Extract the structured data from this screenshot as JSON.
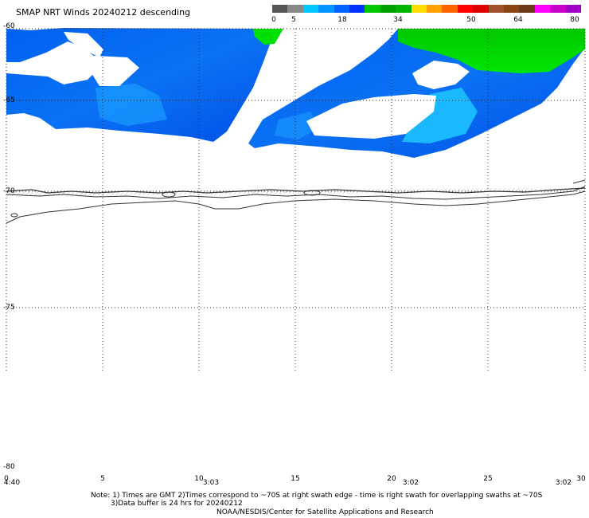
{
  "header": {
    "title": "SMAP NRT Winds  20240212 descending"
  },
  "colorbar": {
    "labels": [
      "0",
      "5",
      "18",
      "34",
      "50",
      "64",
      "80"
    ],
    "segments": [
      {
        "color": "#555555"
      },
      {
        "color": "#888888"
      },
      {
        "color": "#00c8ff"
      },
      {
        "color": "#0096ff"
      },
      {
        "color": "#0064ff"
      },
      {
        "color": "#0032ff"
      },
      {
        "color": "#00c800"
      },
      {
        "color": "#00a000"
      },
      {
        "color": "#00b400"
      },
      {
        "color": "#ffdc00"
      },
      {
        "color": "#ffa000"
      },
      {
        "color": "#ff6400"
      },
      {
        "color": "#ff0000"
      },
      {
        "color": "#dc0000"
      },
      {
        "color": "#a0522d"
      },
      {
        "color": "#8b4513"
      },
      {
        "color": "#6b3a1a"
      },
      {
        "color": "#ff00ff"
      },
      {
        "color": "#c800c8"
      },
      {
        "color": "#a000c8"
      }
    ]
  },
  "axes": {
    "lat_labels": [
      "-60",
      "-65",
      "-70",
      "-75",
      "-80"
    ],
    "lon_labels": [
      "0",
      "5",
      "10",
      "15",
      "20",
      "25",
      "30"
    ],
    "time_labels": [
      "4:40",
      "3:03",
      "3:02",
      "3:02"
    ]
  },
  "colors": {
    "wind_blue": "#0055ee",
    "wind_light_blue": "#19b8ff",
    "wind_green": "#00e000",
    "coast": "#333333"
  },
  "footer": {
    "note_line1": "Note: 1) Times are GMT 2)Times correspond to ~70S at right swath edge - time is right swath for overlapping swaths at ~70S",
    "note_line2": "3)Data buffer is 24 hrs for 20240212",
    "credit": "NOAA/NESDIS/Center for Satellite Applications and Research"
  }
}
